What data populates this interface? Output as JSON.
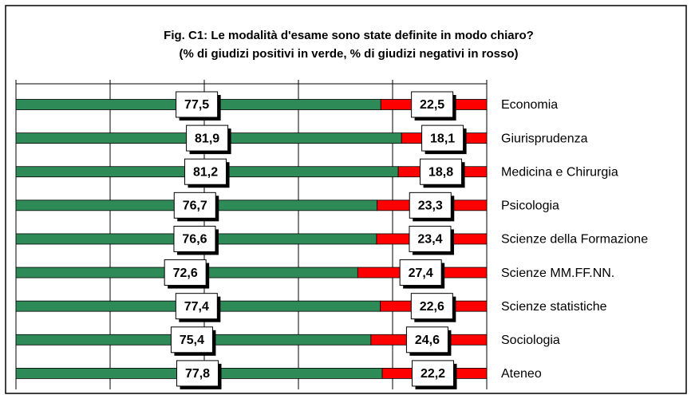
{
  "chart_data": {
    "type": "stacked-bar-horizontal",
    "title": "Fig. C1: Le modalità d'esame sono state definite in modo chiaro?",
    "subtitle": "(% di giudizi positivi in verde, % di giudizi negativi in rosso)",
    "categories": [
      "Economia",
      "Giurisprudenza",
      "Medicina e Chirurgia",
      "Psicologia",
      "Scienze della Formazione",
      "Scienze MM.FF.NN.",
      "Scienze statistiche",
      "Sociologia",
      "Ateneo"
    ],
    "series": [
      {
        "color": "#2e8b57",
        "values": [
          77.5,
          81.9,
          81.2,
          76.7,
          76.6,
          72.6,
          77.4,
          75.4,
          77.8
        ],
        "value_labels": [
          "77,5",
          "81,9",
          "81,2",
          "76,7",
          "76,6",
          "72,6",
          "77,4",
          "75,4",
          "77,8"
        ]
      },
      {
        "color": "#ff0000",
        "values": [
          22.5,
          18.1,
          18.8,
          23.3,
          23.4,
          27.4,
          22.6,
          24.6,
          22.2
        ],
        "value_labels": [
          "22,5",
          "18,1",
          "18,8",
          "23,3",
          "23,4",
          "27,4",
          "22,6",
          "24,6",
          "22,2"
        ]
      }
    ],
    "xlim": [
      0,
      100
    ],
    "xticks": [
      0,
      20,
      40,
      60,
      80,
      100
    ],
    "grid": true
  }
}
